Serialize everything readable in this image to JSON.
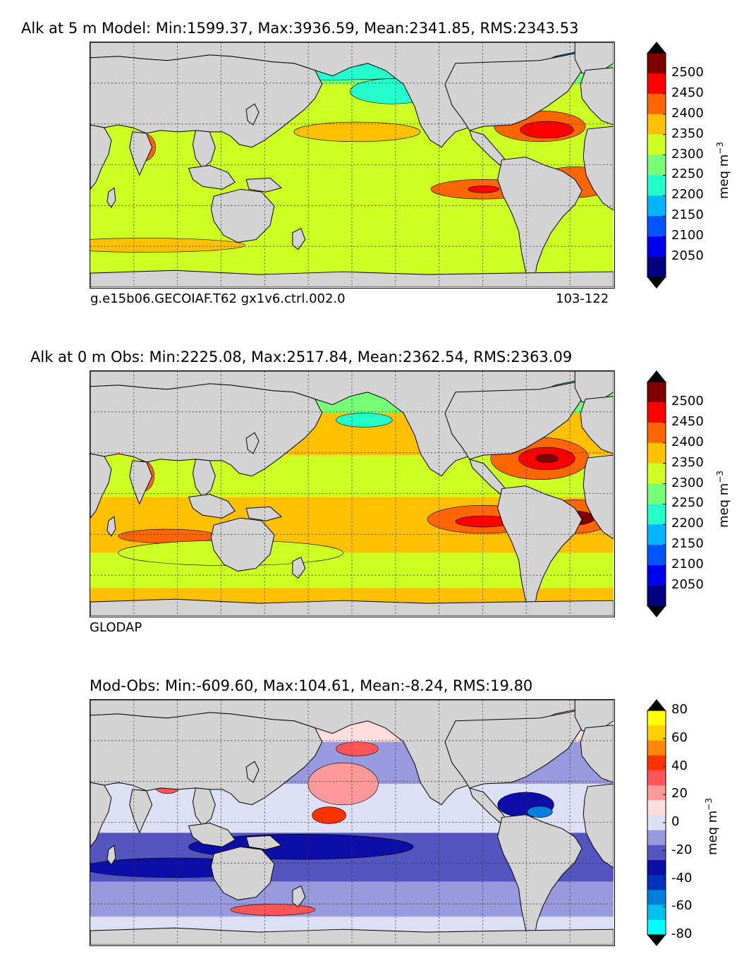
{
  "panels": [
    {
      "title": "Alk at 5 m Model: Min:1599.37, Max:3936.59, Mean:2341.85, RMS:2343.53",
      "footer_left": "g.e15b06.GECOIAF.T62 gx1v6.ctrl.002.0",
      "footer_right": "103-122",
      "colorbar": {
        "unit": "meq m",
        "unit_exp": "−3",
        "ticks": [
          "2500",
          "2450",
          "2400",
          "2350",
          "2300",
          "2250",
          "2200",
          "2150",
          "2100",
          "2050"
        ],
        "colors": [
          "#800000",
          "#ff0000",
          "#ff6600",
          "#ffc000",
          "#ccff22",
          "#77ff77",
          "#22ffcc",
          "#00b4ff",
          "#0055ff",
          "#0000ee",
          "#000080"
        ],
        "over_color": "#000000",
        "under_color": "#000000"
      }
    },
    {
      "title": "Alk at 0 m Obs: Min:2225.08, Max:2517.84, Mean:2362.54, RMS:2363.09",
      "footer_left": "GLODAP",
      "footer_right": "",
      "colorbar": {
        "unit": "meq m",
        "unit_exp": "−3",
        "ticks": [
          "2500",
          "2450",
          "2400",
          "2350",
          "2300",
          "2250",
          "2200",
          "2150",
          "2100",
          "2050"
        ],
        "colors": [
          "#800000",
          "#ff0000",
          "#ff6600",
          "#ffc000",
          "#ccff22",
          "#77ff77",
          "#22ffcc",
          "#00b4ff",
          "#0055ff",
          "#0000ee",
          "#000080"
        ],
        "over_color": "#000000",
        "under_color": "#000000"
      }
    },
    {
      "title": "Mod-Obs: Min:-609.60, Max:104.61, Mean:-8.24, RMS:19.80",
      "footer_left": "",
      "footer_right": "",
      "colorbar": {
        "unit": "meq m",
        "unit_exp": "−3",
        "ticks": [
          "80",
          "60",
          "40",
          "20",
          "0",
          "-20",
          "-40",
          "-60",
          "-80"
        ],
        "colors": [
          "#ffff00",
          "#ffd000",
          "#ff8800",
          "#ff3300",
          "#ff5555",
          "#ff9999",
          "#ffdddd",
          "#dddff5",
          "#9999dd",
          "#5555c0",
          "#0d0da8",
          "#0033bb",
          "#0080dd",
          "#00c0ee",
          "#00ffff"
        ],
        "over_color": "#000000",
        "under_color": "#000000"
      }
    }
  ],
  "chart_data": [
    {
      "type": "heatmap",
      "title": "Alk at 5 m Model: Min:1599.37, Max:3936.59, Mean:2341.85, RMS:2343.53",
      "variable": "Alk",
      "depth": "5 m",
      "source": "Model",
      "stats": {
        "min": 1599.37,
        "max": 3936.59,
        "mean": 2341.85,
        "rms": 2343.53
      },
      "colorbar_levels": [
        2050,
        2100,
        2150,
        2200,
        2250,
        2300,
        2350,
        2400,
        2450,
        2500
      ],
      "colorbar_unit": "meq m^-3",
      "colorbar_extend": "both",
      "grid": true
    },
    {
      "type": "heatmap",
      "title": "Alk at 0 m Obs: Min:2225.08, Max:2517.84, Mean:2362.54, RMS:2363.09",
      "variable": "Alk",
      "depth": "0 m",
      "source": "Obs",
      "stats": {
        "min": 2225.08,
        "max": 2517.84,
        "mean": 2362.54,
        "rms": 2363.09
      },
      "colorbar_levels": [
        2050,
        2100,
        2150,
        2200,
        2250,
        2300,
        2350,
        2400,
        2450,
        2500
      ],
      "colorbar_unit": "meq m^-3",
      "colorbar_extend": "both",
      "grid": true
    },
    {
      "type": "heatmap",
      "title": "Mod-Obs: Min:-609.60, Max:104.61, Mean:-8.24, RMS:19.80",
      "variable": "Mod-Obs",
      "stats": {
        "min": -609.6,
        "max": 104.61,
        "mean": -8.24,
        "rms": 19.8
      },
      "colorbar_levels": [
        -80,
        -60,
        -40,
        -20,
        0,
        20,
        40,
        60,
        80
      ],
      "colorbar_unit": "meq m^-3",
      "colorbar_extend": "both",
      "grid": true
    }
  ]
}
